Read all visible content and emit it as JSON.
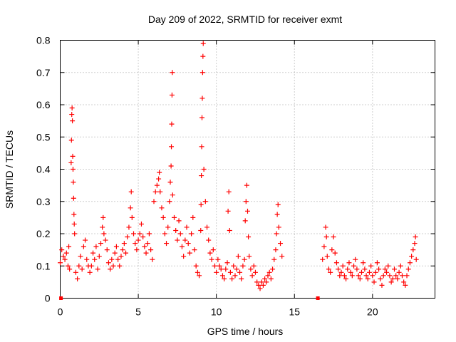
{
  "chart_data": {
    "type": "scatter",
    "title": "Day 209 of 2022, SRMTID for receiver exmt",
    "xlabel": "GPS time / hours",
    "ylabel": "SRMTID / TECUs",
    "xlim": [
      0,
      24
    ],
    "ylim": [
      0,
      0.8
    ],
    "xticks": [
      0,
      5,
      10,
      15,
      20
    ],
    "yticks": [
      0,
      0.1,
      0.2,
      0.3,
      0.4,
      0.5,
      0.6,
      0.7,
      0.8
    ],
    "xtick_labels": [
      "0",
      "5",
      "10",
      "15",
      "20"
    ],
    "ytick_labels": [
      "0",
      "0.1",
      "0.2",
      "0.3",
      "0.4",
      "0.5",
      "0.6",
      "0.7",
      "0.8"
    ],
    "grid": true,
    "marker": "plus",
    "series_color": "#ff0000",
    "zero_markers": [
      0.05,
      16.5
    ],
    "series": [
      {
        "name": "SRMTID",
        "points": [
          [
            0.0,
            0.11
          ],
          [
            0.1,
            0.15
          ],
          [
            0.2,
            0.13
          ],
          [
            0.3,
            0.12
          ],
          [
            0.4,
            0.14
          ],
          [
            0.5,
            0.1
          ],
          [
            0.55,
            0.16
          ],
          [
            0.6,
            0.09
          ],
          [
            0.7,
            0.42
          ],
          [
            0.72,
            0.49
          ],
          [
            0.74,
            0.57
          ],
          [
            0.76,
            0.59
          ],
          [
            0.78,
            0.55
          ],
          [
            0.8,
            0.44
          ],
          [
            0.82,
            0.4
          ],
          [
            0.84,
            0.36
          ],
          [
            0.86,
            0.31
          ],
          [
            0.88,
            0.26
          ],
          [
            0.9,
            0.23
          ],
          [
            0.92,
            0.2
          ],
          [
            1.0,
            0.08
          ],
          [
            1.1,
            0.06
          ],
          [
            1.2,
            0.1
          ],
          [
            1.3,
            0.13
          ],
          [
            1.4,
            0.09
          ],
          [
            1.5,
            0.16
          ],
          [
            1.6,
            0.18
          ],
          [
            1.7,
            0.12
          ],
          [
            1.8,
            0.1
          ],
          [
            1.9,
            0.08
          ],
          [
            2.0,
            0.1
          ],
          [
            2.1,
            0.14
          ],
          [
            2.2,
            0.12
          ],
          [
            2.3,
            0.16
          ],
          [
            2.4,
            0.09
          ],
          [
            2.5,
            0.13
          ],
          [
            2.6,
            0.17
          ],
          [
            2.7,
            0.22
          ],
          [
            2.75,
            0.25
          ],
          [
            2.8,
            0.2
          ],
          [
            2.9,
            0.18
          ],
          [
            3.0,
            0.15
          ],
          [
            3.1,
            0.11
          ],
          [
            3.2,
            0.09
          ],
          [
            3.3,
            0.12
          ],
          [
            3.4,
            0.1
          ],
          [
            3.5,
            0.14
          ],
          [
            3.6,
            0.16
          ],
          [
            3.7,
            0.12
          ],
          [
            3.8,
            0.1
          ],
          [
            3.9,
            0.13
          ],
          [
            4.0,
            0.15
          ],
          [
            4.1,
            0.17
          ],
          [
            4.2,
            0.14
          ],
          [
            4.3,
            0.19
          ],
          [
            4.4,
            0.22
          ],
          [
            4.5,
            0.28
          ],
          [
            4.55,
            0.33
          ],
          [
            4.6,
            0.25
          ],
          [
            4.7,
            0.2
          ],
          [
            4.8,
            0.17
          ],
          [
            4.9,
            0.15
          ],
          [
            5.0,
            0.18
          ],
          [
            5.1,
            0.2
          ],
          [
            5.2,
            0.23
          ],
          [
            5.3,
            0.19
          ],
          [
            5.4,
            0.16
          ],
          [
            5.5,
            0.14
          ],
          [
            5.6,
            0.17
          ],
          [
            5.7,
            0.2
          ],
          [
            5.8,
            0.15
          ],
          [
            5.9,
            0.12
          ],
          [
            6.0,
            0.3
          ],
          [
            6.1,
            0.33
          ],
          [
            6.2,
            0.35
          ],
          [
            6.3,
            0.37
          ],
          [
            6.35,
            0.39
          ],
          [
            6.4,
            0.33
          ],
          [
            6.5,
            0.28
          ],
          [
            6.6,
            0.25
          ],
          [
            6.7,
            0.2
          ],
          [
            6.8,
            0.17
          ],
          [
            6.9,
            0.22
          ],
          [
            7.0,
            0.3
          ],
          [
            7.05,
            0.36
          ],
          [
            7.1,
            0.41
          ],
          [
            7.12,
            0.47
          ],
          [
            7.14,
            0.54
          ],
          [
            7.16,
            0.63
          ],
          [
            7.18,
            0.7
          ],
          [
            7.2,
            0.32
          ],
          [
            7.3,
            0.25
          ],
          [
            7.4,
            0.21
          ],
          [
            7.5,
            0.18
          ],
          [
            7.6,
            0.24
          ],
          [
            7.7,
            0.2
          ],
          [
            7.8,
            0.16
          ],
          [
            7.9,
            0.13
          ],
          [
            8.0,
            0.18
          ],
          [
            8.1,
            0.22
          ],
          [
            8.2,
            0.17
          ],
          [
            8.3,
            0.14
          ],
          [
            8.4,
            0.2
          ],
          [
            8.5,
            0.25
          ],
          [
            8.6,
            0.15
          ],
          [
            8.7,
            0.1
          ],
          [
            8.8,
            0.08
          ],
          [
            8.9,
            0.07
          ],
          [
            9.0,
            0.21
          ],
          [
            9.02,
            0.29
          ],
          [
            9.04,
            0.38
          ],
          [
            9.06,
            0.47
          ],
          [
            9.08,
            0.56
          ],
          [
            9.1,
            0.62
          ],
          [
            9.12,
            0.7
          ],
          [
            9.14,
            0.75
          ],
          [
            9.16,
            0.79
          ],
          [
            9.2,
            0.4
          ],
          [
            9.3,
            0.3
          ],
          [
            9.4,
            0.22
          ],
          [
            9.5,
            0.18
          ],
          [
            9.6,
            0.14
          ],
          [
            9.7,
            0.12
          ],
          [
            9.8,
            0.15
          ],
          [
            9.9,
            0.1
          ],
          [
            10.0,
            0.08
          ],
          [
            10.1,
            0.12
          ],
          [
            10.2,
            0.1
          ],
          [
            10.3,
            0.09
          ],
          [
            10.4,
            0.07
          ],
          [
            10.5,
            0.06
          ],
          [
            10.6,
            0.09
          ],
          [
            10.7,
            0.11
          ],
          [
            10.75,
            0.27
          ],
          [
            10.8,
            0.33
          ],
          [
            10.85,
            0.21
          ],
          [
            10.9,
            0.08
          ],
          [
            11.0,
            0.06
          ],
          [
            11.1,
            0.1
          ],
          [
            11.2,
            0.07
          ],
          [
            11.3,
            0.09
          ],
          [
            11.4,
            0.13
          ],
          [
            11.5,
            0.08
          ],
          [
            11.6,
            0.06
          ],
          [
            11.7,
            0.1
          ],
          [
            11.8,
            0.12
          ],
          [
            11.85,
            0.24
          ],
          [
            11.9,
            0.3
          ],
          [
            11.95,
            0.35
          ],
          [
            12.0,
            0.27
          ],
          [
            12.05,
            0.19
          ],
          [
            12.1,
            0.13
          ],
          [
            12.2,
            0.09
          ],
          [
            12.3,
            0.07
          ],
          [
            12.4,
            0.1
          ],
          [
            12.5,
            0.08
          ],
          [
            12.6,
            0.05
          ],
          [
            12.7,
            0.04
          ],
          [
            12.8,
            0.03
          ],
          [
            12.9,
            0.05
          ],
          [
            13.0,
            0.04
          ],
          [
            13.1,
            0.06
          ],
          [
            13.2,
            0.05
          ],
          [
            13.3,
            0.07
          ],
          [
            13.4,
            0.08
          ],
          [
            13.5,
            0.06
          ],
          [
            13.6,
            0.09
          ],
          [
            13.7,
            0.12
          ],
          [
            13.8,
            0.15
          ],
          [
            13.85,
            0.2
          ],
          [
            13.9,
            0.26
          ],
          [
            13.95,
            0.29
          ],
          [
            14.0,
            0.22
          ],
          [
            14.1,
            0.17
          ],
          [
            14.2,
            0.13
          ],
          [
            16.8,
            0.12
          ],
          [
            16.9,
            0.16
          ],
          [
            17.0,
            0.22
          ],
          [
            17.05,
            0.19
          ],
          [
            17.1,
            0.13
          ],
          [
            17.2,
            0.09
          ],
          [
            17.3,
            0.08
          ],
          [
            17.4,
            0.15
          ],
          [
            17.5,
            0.19
          ],
          [
            17.6,
            0.14
          ],
          [
            17.7,
            0.11
          ],
          [
            17.8,
            0.09
          ],
          [
            17.9,
            0.07
          ],
          [
            18.0,
            0.08
          ],
          [
            18.1,
            0.1
          ],
          [
            18.2,
            0.07
          ],
          [
            18.3,
            0.06
          ],
          [
            18.4,
            0.09
          ],
          [
            18.5,
            0.11
          ],
          [
            18.6,
            0.08
          ],
          [
            18.7,
            0.07
          ],
          [
            18.8,
            0.1
          ],
          [
            18.9,
            0.12
          ],
          [
            19.0,
            0.09
          ],
          [
            19.1,
            0.07
          ],
          [
            19.2,
            0.06
          ],
          [
            19.3,
            0.08
          ],
          [
            19.4,
            0.11
          ],
          [
            19.5,
            0.09
          ],
          [
            19.6,
            0.07
          ],
          [
            19.7,
            0.06
          ],
          [
            19.8,
            0.08
          ],
          [
            19.9,
            0.1
          ],
          [
            20.0,
            0.07
          ],
          [
            20.1,
            0.05
          ],
          [
            20.2,
            0.08
          ],
          [
            20.3,
            0.11
          ],
          [
            20.4,
            0.09
          ],
          [
            20.5,
            0.06
          ],
          [
            20.6,
            0.04
          ],
          [
            20.7,
            0.07
          ],
          [
            20.8,
            0.09
          ],
          [
            20.9,
            0.08
          ],
          [
            21.0,
            0.1
          ],
          [
            21.1,
            0.07
          ],
          [
            21.2,
            0.05
          ],
          [
            21.3,
            0.06
          ],
          [
            21.4,
            0.09
          ],
          [
            21.5,
            0.07
          ],
          [
            21.6,
            0.06
          ],
          [
            21.7,
            0.08
          ],
          [
            21.8,
            0.1
          ],
          [
            21.9,
            0.07
          ],
          [
            22.0,
            0.05
          ],
          [
            22.1,
            0.04
          ],
          [
            22.2,
            0.07
          ],
          [
            22.3,
            0.09
          ],
          [
            22.4,
            0.11
          ],
          [
            22.5,
            0.13
          ],
          [
            22.6,
            0.15
          ],
          [
            22.7,
            0.17
          ],
          [
            22.75,
            0.19
          ],
          [
            22.8,
            0.12
          ]
        ]
      }
    ]
  }
}
